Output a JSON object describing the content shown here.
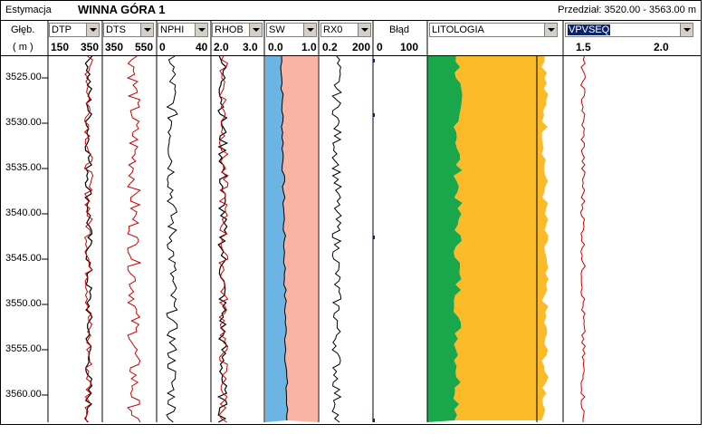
{
  "title_bar": {
    "label": "Estymacja",
    "well_name": "WINNA GÓRA 1",
    "interval": "Przedział: 3520.00 - 3563.00 m"
  },
  "depth_header": {
    "line1": "Głęb.",
    "line2": "( m )"
  },
  "depth_labels": [
    "3525.00",
    "3530.00",
    "3535.00",
    "3540.00",
    "3545.00",
    "3550.00",
    "3555.00",
    "3560.00"
  ],
  "tracks": [
    {
      "id": "dtp",
      "name": "DTP",
      "scale_min": "150",
      "scale_max": "350"
    },
    {
      "id": "dts",
      "name": "DTS",
      "scale_min": "350",
      "scale_max": "550"
    },
    {
      "id": "nphi",
      "name": "NPHI",
      "scale_min": "0",
      "scale_max": "40"
    },
    {
      "id": "rhob",
      "name": "RHOB",
      "scale_min": "2.0",
      "scale_max": "3.0"
    },
    {
      "id": "sw",
      "name": "SW",
      "scale_min": "0.0",
      "scale_max": "1.0"
    },
    {
      "id": "rx0",
      "name": "RX0",
      "scale_min": "0.2",
      "scale_max": "200"
    },
    {
      "id": "blad",
      "name": "Błąd",
      "scale_min": "0",
      "scale_max": "100"
    },
    {
      "id": "lito",
      "name": "LITOLOGIA",
      "scale_min": "",
      "scale_max": ""
    },
    {
      "id": "vpvs",
      "name": "VPVSEQ",
      "scale_min": "1.5",
      "scale_max": "2.0"
    }
  ],
  "colors": {
    "curve_black": "#000000",
    "curve_red": "#cc0000",
    "sw_water": "#6cb4e4",
    "sw_hydrocarbon": "#f7b4a2",
    "lito_shale": "#1aa64a",
    "lito_sand": "#fbbb28",
    "selection": "#0a246a"
  }
}
